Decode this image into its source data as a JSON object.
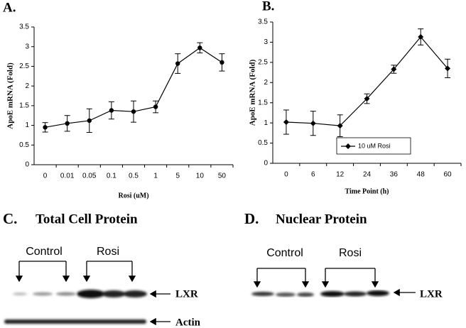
{
  "chart_data": [
    {
      "type": "line",
      "label": "A.",
      "ylabel": "ApoE mRNA (Fold)",
      "xlabel": "Rosi (uM)",
      "categories": [
        "0",
        "0.01",
        "0.05",
        "0.1",
        "0.5",
        "1",
        "5",
        "10",
        "50"
      ],
      "values": [
        0.95,
        1.05,
        1.12,
        1.38,
        1.35,
        1.47,
        2.57,
        2.97,
        2.6
      ],
      "errors": [
        0.12,
        0.2,
        0.3,
        0.22,
        0.27,
        0.15,
        0.25,
        0.13,
        0.22
      ],
      "color": "#000000",
      "marker": "circle",
      "ylim": [
        0,
        3.5
      ],
      "yticks": [
        0,
        0.5,
        1,
        1.5,
        2,
        2.5,
        3,
        3.5
      ]
    },
    {
      "type": "line",
      "label": "B.",
      "ylabel": "ApoE mRNA (Fold)",
      "xlabel": "Time Point (h)",
      "categories": [
        "0",
        "6",
        "12",
        "24",
        "36",
        "48",
        "60"
      ],
      "series": [
        {
          "name": "10 uM Rosi",
          "color": "#000000",
          "marker": "diamond",
          "values": [
            1.02,
            0.99,
            0.93,
            1.6,
            2.33,
            3.13,
            2.35
          ],
          "errors": [
            0.3,
            0.3,
            0.27,
            0.12,
            0.1,
            0.2,
            0.23
          ]
        }
      ],
      "legend": "lower right",
      "ylim": [
        0,
        3.5
      ],
      "yticks": [
        0,
        0.5,
        1,
        1.5,
        2,
        2.5,
        3,
        3.5
      ]
    }
  ],
  "blots": [
    {
      "label": "C.",
      "title": "Total Cell Protein",
      "groups": [
        "Control",
        "Rosi"
      ],
      "rows": [
        "LXR",
        "Actin"
      ]
    },
    {
      "label": "D.",
      "title": "Nuclear Protein",
      "groups": [
        "Control",
        "Rosi"
      ],
      "rows": [
        "LXR"
      ]
    }
  ]
}
